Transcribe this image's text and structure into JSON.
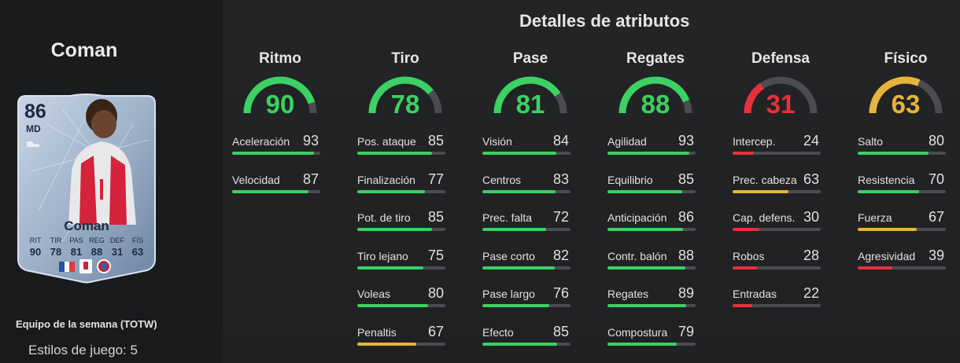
{
  "player": {
    "name": "Coman",
    "promo": "Equipo de la semana (TOTW)",
    "playstyles": "Estilos de juego: 5"
  },
  "card": {
    "ovr": "86",
    "position": "MD",
    "name": "Coman",
    "stats": [
      {
        "label": "RIT",
        "value": "90"
      },
      {
        "label": "TIR",
        "value": "78"
      },
      {
        "label": "PAS",
        "value": "81"
      },
      {
        "label": "REG",
        "value": "88"
      },
      {
        "label": "DEF",
        "value": "31"
      },
      {
        "label": "FÍS",
        "value": "63"
      }
    ],
    "nation": "france-flag-icon",
    "league": "bundesliga-icon",
    "club": "bayern-icon"
  },
  "section_title": "Detalles de atributos",
  "colors": {
    "green": "#3bd163",
    "red": "#e8303c",
    "yellow": "#e6b43c",
    "track": "#4b4c4f"
  },
  "categories": [
    {
      "name": "Ritmo",
      "value": "90",
      "level": 90,
      "color": "green",
      "attributes": [
        {
          "name": "Aceleración",
          "value": "93"
        },
        {
          "name": "Velocidad",
          "value": "87"
        }
      ]
    },
    {
      "name": "Tiro",
      "value": "78",
      "level": 78,
      "color": "green",
      "attributes": [
        {
          "name": "Pos. ataque",
          "value": "85"
        },
        {
          "name": "Finalización",
          "value": "77"
        },
        {
          "name": "Pot. de tiro",
          "value": "85"
        },
        {
          "name": "Tiro lejano",
          "value": "75"
        },
        {
          "name": "Voleas",
          "value": "80"
        },
        {
          "name": "Penaltis",
          "value": "67"
        }
      ]
    },
    {
      "name": "Pase",
      "value": "81",
      "level": 81,
      "color": "green",
      "attributes": [
        {
          "name": "Visión",
          "value": "84"
        },
        {
          "name": "Centros",
          "value": "83"
        },
        {
          "name": "Prec. falta",
          "value": "72"
        },
        {
          "name": "Pase corto",
          "value": "82"
        },
        {
          "name": "Pase largo",
          "value": "76"
        },
        {
          "name": "Efecto",
          "value": "85"
        }
      ]
    },
    {
      "name": "Regates",
      "value": "88",
      "level": 88,
      "color": "green",
      "attributes": [
        {
          "name": "Agilidad",
          "value": "93"
        },
        {
          "name": "Equilibrio",
          "value": "85"
        },
        {
          "name": "Anticipación",
          "value": "86"
        },
        {
          "name": "Contr. balón",
          "value": "88"
        },
        {
          "name": "Regates",
          "value": "89"
        },
        {
          "name": "Compostura",
          "value": "79"
        }
      ]
    },
    {
      "name": "Defensa",
      "value": "31",
      "level": 31,
      "color": "red",
      "attributes": [
        {
          "name": "Intercep.",
          "value": "24"
        },
        {
          "name": "Prec. cabeza",
          "value": "63"
        },
        {
          "name": "Cap. defens.",
          "value": "30"
        },
        {
          "name": "Robos",
          "value": "28"
        },
        {
          "name": "Entradas",
          "value": "22"
        }
      ]
    },
    {
      "name": "Físico",
      "value": "63",
      "level": 63,
      "color": "yellow",
      "attributes": [
        {
          "name": "Salto",
          "value": "80"
        },
        {
          "name": "Resistencia",
          "value": "70"
        },
        {
          "name": "Fuerza",
          "value": "67"
        },
        {
          "name": "Agresividad",
          "value": "39"
        }
      ]
    }
  ]
}
